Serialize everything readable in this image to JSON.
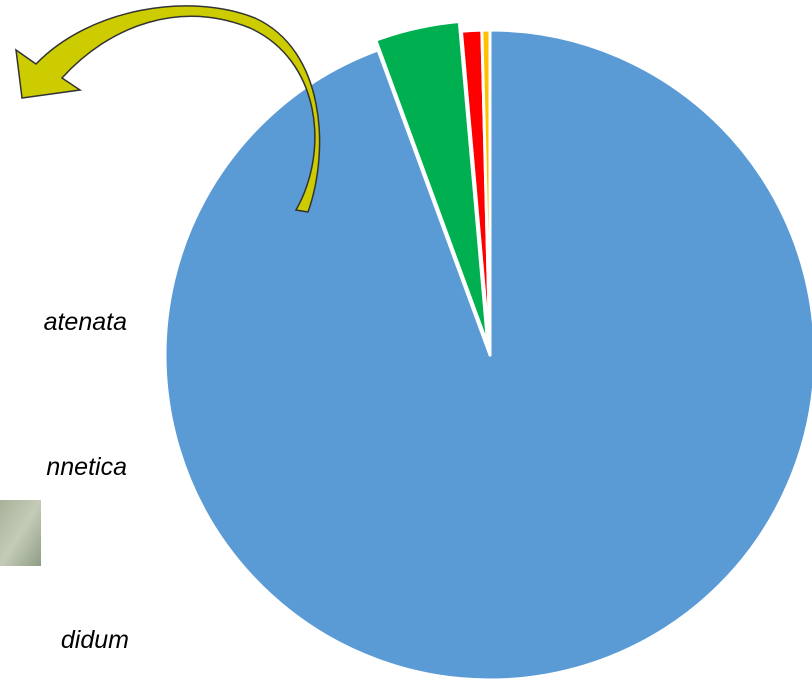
{
  "chart_data": {
    "type": "pie",
    "categories": [
      null,
      null,
      null,
      null
    ],
    "values": [
      94.4,
      4.2,
      1,
      0.4
    ],
    "colors": [
      "#5b9bd5",
      "#00b050",
      "#ff0000",
      "#ffc000"
    ],
    "exploded": [
      false,
      true,
      false,
      false
    ],
    "annotations": [
      "atenata",
      "nnetica",
      "didum"
    ]
  }
}
